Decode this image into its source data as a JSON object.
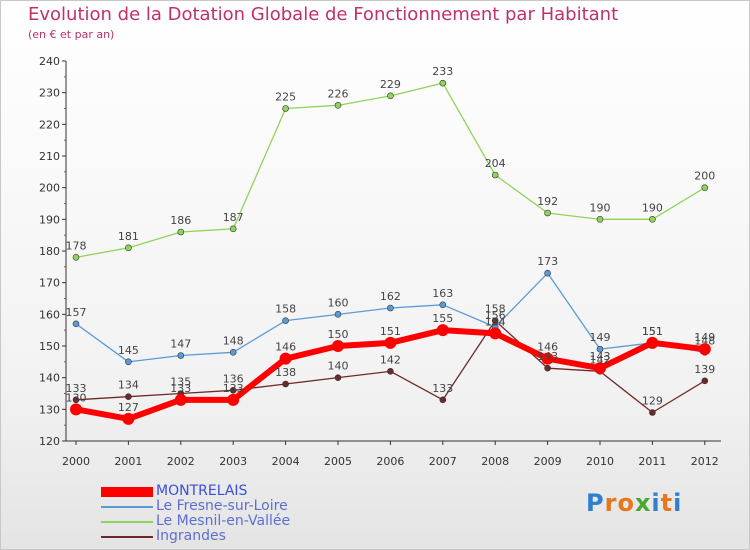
{
  "chart_data": {
    "type": "line",
    "title": "Evolution de la Dotation Globale de Fonctionnement par Habitant",
    "subtitle": "(en € et par an)",
    "x": [
      "2000",
      "2001",
      "2002",
      "2003",
      "2004",
      "2005",
      "2006",
      "2007",
      "2008",
      "2009",
      "2010",
      "2011",
      "2012"
    ],
    "ylim": [
      120,
      240
    ],
    "yticks": [
      120,
      130,
      140,
      150,
      160,
      170,
      180,
      190,
      200,
      210,
      220,
      230,
      240
    ],
    "grid": false,
    "legend_position": "bottom-left",
    "series": [
      {
        "name": "MONTRELAIS",
        "color": "#ff0000",
        "values": [
          130,
          127,
          133,
          133,
          146,
          150,
          151,
          155,
          154,
          146,
          143,
          151,
          149
        ]
      },
      {
        "name": "Le Fresne-sur-Loire",
        "color": "#5b9bd5",
        "values": [
          157,
          145,
          147,
          148,
          158,
          160,
          162,
          163,
          156,
          173,
          149,
          151,
          148
        ]
      },
      {
        "name": "Le Mesnil-en-Vallée",
        "color": "#8fd45a",
        "values": [
          178,
          181,
          186,
          187,
          225,
          226,
          229,
          233,
          204,
          192,
          190,
          190,
          200
        ]
      },
      {
        "name": "Ingrandes",
        "color": "#6e2a2a",
        "values": [
          133,
          134,
          135,
          136,
          138,
          140,
          142,
          133,
          158,
          143,
          142,
          129,
          139
        ]
      }
    ]
  },
  "logo": {
    "text": "Proxiti",
    "letter_colors": [
      "#2e7fd0",
      "#e8761b",
      "#e8761b",
      "#4aa832",
      "#2e7fd0",
      "#e8761b",
      "#2e7fd0"
    ]
  }
}
